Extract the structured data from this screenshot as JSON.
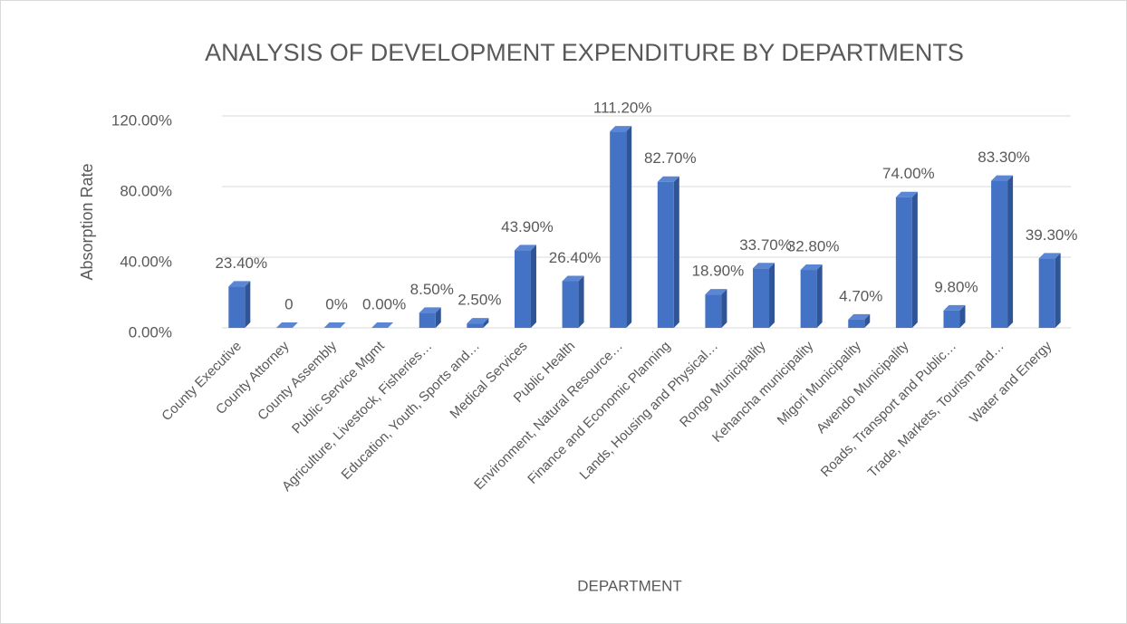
{
  "chart_data": {
    "type": "bar",
    "title": "ANALYSIS OF DEVELOPMENT EXPENDITURE BY DEPARTMENTS",
    "x_label": "DEPARTMENT",
    "y_label": "Absorption Rate",
    "categories": [
      "County Executive",
      "County Attorney",
      "County Assembly",
      "Public Service Mgmt",
      "Agriculture, Livestock, Fisheries…",
      "Education, Youth, Sports and…",
      "Medical Services",
      "Public Health",
      "Environment, Natural Resource…",
      "Finance and Economic Planning",
      "Lands, Housing and Physical…",
      "Rongo Municipality",
      "Kehancha municipality",
      "Migori Municipality",
      "Awendo Municipality",
      "Roads, Transport and Public…",
      "Trade, Markets, Tourism and…",
      "Water and Energy"
    ],
    "values": [
      23.4,
      0,
      0,
      0,
      8.5,
      2.5,
      43.9,
      26.4,
      111.2,
      82.7,
      18.9,
      33.7,
      32.8,
      4.7,
      74.0,
      9.8,
      83.3,
      39.3
    ],
    "value_labels": [
      "23.40%",
      "0",
      "0%",
      "0.00%",
      "8.50%",
      "2.50%",
      "43.90%",
      "26.40%",
      "111.20%",
      "82.70%",
      "18.90%",
      "33.70%",
      "32.80%",
      "4.70%",
      "74.00%",
      "9.80%",
      "83.30%",
      "39.30%"
    ],
    "color": "#4472c4",
    "ylim": [
      0,
      120
    ],
    "yticks": [
      {
        "value": 0,
        "label": "0.00%"
      },
      {
        "value": 40,
        "label": "40.00%"
      },
      {
        "value": 80,
        "label": "80.00%"
      },
      {
        "value": 120,
        "label": "120.00%"
      }
    ],
    "grid": true
  }
}
